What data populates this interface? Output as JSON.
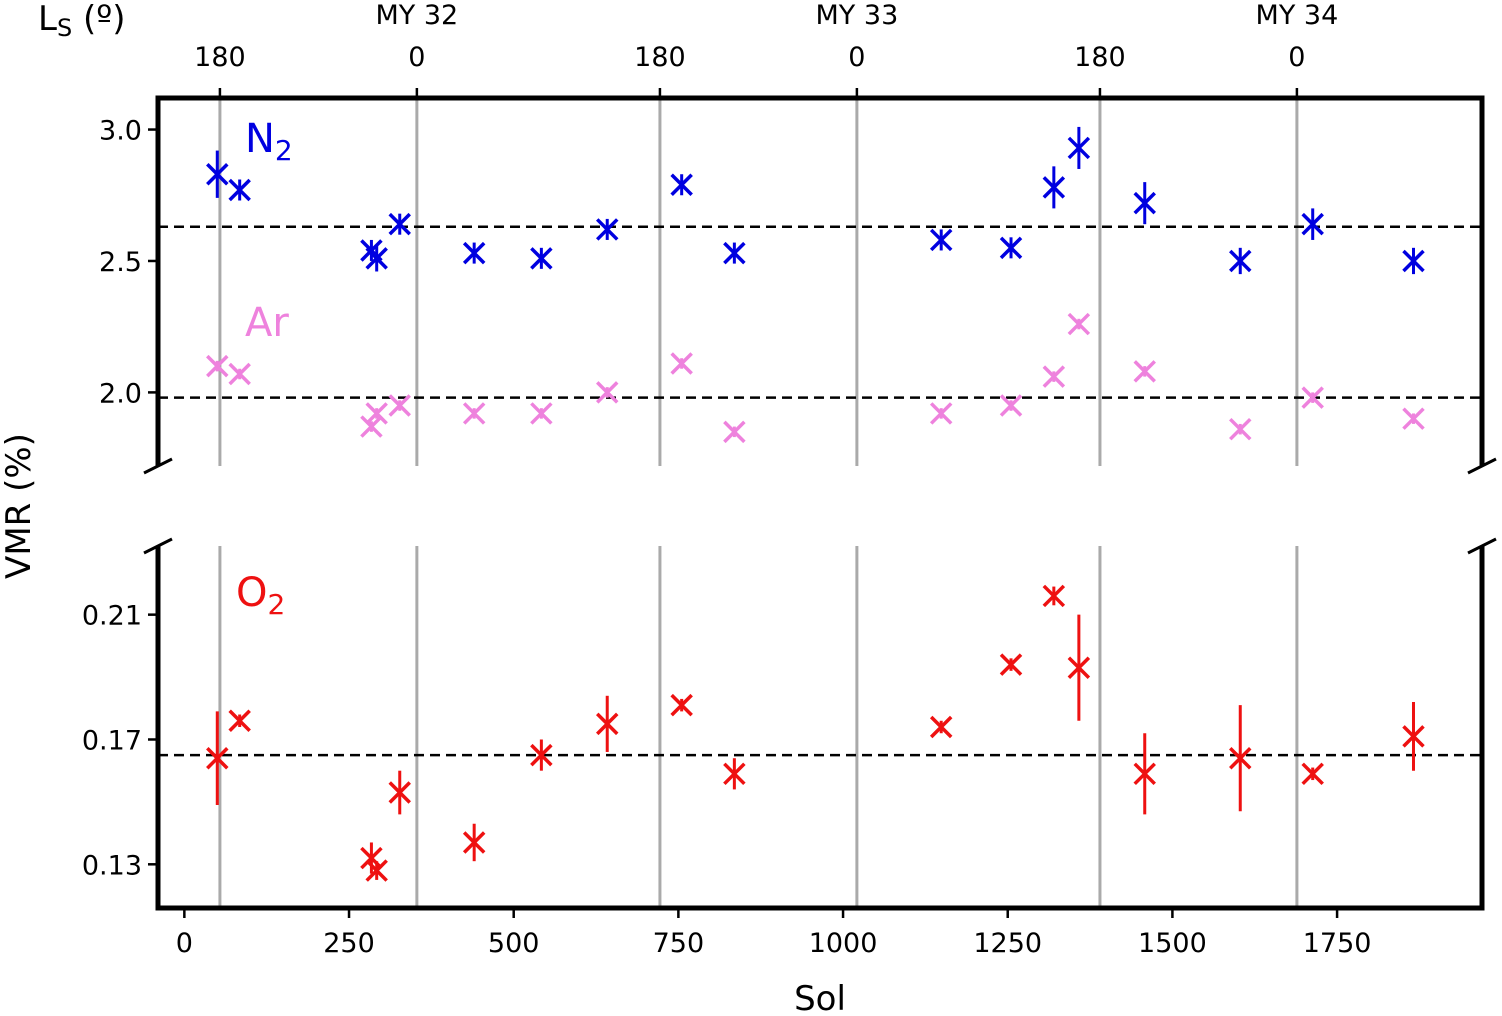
{
  "chart_data": {
    "type": "scatter",
    "xlabel": "Sol",
    "ylabel": "VMR (%)",
    "xlim": [
      -40,
      1970
    ],
    "x_ticks": [
      0,
      250,
      500,
      750,
      1000,
      1250,
      1500,
      1750
    ],
    "x_tick_labels": [
      "0",
      "250",
      "500",
      "750",
      "1000",
      "1250",
      "1500",
      "1750"
    ],
    "top_axis": {
      "label_main": "L",
      "label_sub": "S",
      "label_unit": " (º)",
      "ls_ticks": [
        {
          "sol": 54,
          "label": "180"
        },
        {
          "sol": 353,
          "label": "0"
        },
        {
          "sol": 722,
          "label": "180"
        },
        {
          "sol": 1021,
          "label": "0"
        },
        {
          "sol": 1390,
          "label": "180"
        },
        {
          "sol": 1689,
          "label": "0"
        }
      ],
      "martian_years": [
        {
          "sol": 353,
          "label": "MY 32"
        },
        {
          "sol": 1021,
          "label": "MY 33"
        },
        {
          "sol": 1689,
          "label": "MY 34"
        }
      ]
    },
    "vertical_lines_sol": [
      54,
      353,
      722,
      1021,
      1390,
      1689
    ],
    "panels": [
      {
        "name": "upper",
        "ylim": [
          1.72,
          3.12
        ],
        "y_ticks": [
          2.0,
          2.5,
          3.0
        ],
        "y_tick_labels": [
          "2.0",
          "2.5",
          "3.0"
        ],
        "series": [
          {
            "name": "N2",
            "label_main": "N",
            "label_sub": "2",
            "color": "#0000e0",
            "mean": 2.63,
            "points": [
              {
                "x": 50,
                "y": 2.83,
                "err": 0.09
              },
              {
                "x": 84,
                "y": 2.77,
                "err": 0.04
              },
              {
                "x": 284,
                "y": 2.54,
                "err": 0.04
              },
              {
                "x": 292,
                "y": 2.51,
                "err": 0.05
              },
              {
                "x": 327,
                "y": 2.64,
                "err": 0.04
              },
              {
                "x": 440,
                "y": 2.53,
                "err": 0.04
              },
              {
                "x": 542,
                "y": 2.51,
                "err": 0.04
              },
              {
                "x": 642,
                "y": 2.62,
                "err": 0.04
              },
              {
                "x": 755,
                "y": 2.79,
                "err": 0.04
              },
              {
                "x": 835,
                "y": 2.53,
                "err": 0.04
              },
              {
                "x": 1149,
                "y": 2.58,
                "err": 0.04
              },
              {
                "x": 1255,
                "y": 2.55,
                "err": 0.04
              },
              {
                "x": 1320,
                "y": 2.78,
                "err": 0.08
              },
              {
                "x": 1358,
                "y": 2.93,
                "err": 0.08
              },
              {
                "x": 1458,
                "y": 2.72,
                "err": 0.08
              },
              {
                "x": 1603,
                "y": 2.5,
                "err": 0.05
              },
              {
                "x": 1713,
                "y": 2.64,
                "err": 0.06
              },
              {
                "x": 1866,
                "y": 2.5,
                "err": 0.05
              }
            ]
          },
          {
            "name": "Ar",
            "label_main": "Ar",
            "label_sub": "",
            "color": "#ee82dd",
            "mean": 1.98,
            "points": [
              {
                "x": 50,
                "y": 2.1,
                "err": 0.02
              },
              {
                "x": 84,
                "y": 2.07,
                "err": 0.02
              },
              {
                "x": 284,
                "y": 1.87,
                "err": 0.02
              },
              {
                "x": 292,
                "y": 1.92,
                "err": 0.02
              },
              {
                "x": 327,
                "y": 1.95,
                "err": 0.02
              },
              {
                "x": 440,
                "y": 1.92,
                "err": 0.02
              },
              {
                "x": 542,
                "y": 1.92,
                "err": 0.02
              },
              {
                "x": 642,
                "y": 2.0,
                "err": 0.02
              },
              {
                "x": 755,
                "y": 2.11,
                "err": 0.02
              },
              {
                "x": 835,
                "y": 1.85,
                "err": 0.02
              },
              {
                "x": 1149,
                "y": 1.92,
                "err": 0.02
              },
              {
                "x": 1255,
                "y": 1.95,
                "err": 0.02
              },
              {
                "x": 1320,
                "y": 2.06,
                "err": 0.02
              },
              {
                "x": 1358,
                "y": 2.26,
                "err": 0.02
              },
              {
                "x": 1458,
                "y": 2.08,
                "err": 0.02
              },
              {
                "x": 1603,
                "y": 1.86,
                "err": 0.02
              },
              {
                "x": 1713,
                "y": 1.98,
                "err": 0.02
              },
              {
                "x": 1866,
                "y": 1.9,
                "err": 0.02
              }
            ]
          }
        ]
      },
      {
        "name": "lower",
        "ylim": [
          0.116,
          0.232
        ],
        "y_ticks": [
          0.13,
          0.17,
          0.21
        ],
        "y_tick_labels": [
          "0.13",
          "0.17",
          "0.21"
        ],
        "series": [
          {
            "name": "O2",
            "label_main": "O",
            "label_sub": "2",
            "color": "#ee1111",
            "mean": 0.165,
            "points": [
              {
                "x": 50,
                "y": 0.164,
                "err": 0.015
              },
              {
                "x": 84,
                "y": 0.176,
                "err": 0.002
              },
              {
                "x": 284,
                "y": 0.132,
                "err": 0.005
              },
              {
                "x": 292,
                "y": 0.128,
                "err": 0.003
              },
              {
                "x": 327,
                "y": 0.153,
                "err": 0.007
              },
              {
                "x": 440,
                "y": 0.137,
                "err": 0.006
              },
              {
                "x": 542,
                "y": 0.165,
                "err": 0.005
              },
              {
                "x": 642,
                "y": 0.175,
                "err": 0.009
              },
              {
                "x": 755,
                "y": 0.181,
                "err": 0.002
              },
              {
                "x": 835,
                "y": 0.159,
                "err": 0.005
              },
              {
                "x": 1149,
                "y": 0.174,
                "err": 0.002
              },
              {
                "x": 1255,
                "y": 0.194,
                "err": 0.002
              },
              {
                "x": 1320,
                "y": 0.216,
                "err": 0.003
              },
              {
                "x": 1358,
                "y": 0.193,
                "err": 0.017
              },
              {
                "x": 1458,
                "y": 0.159,
                "err": 0.013
              },
              {
                "x": 1603,
                "y": 0.164,
                "err": 0.017
              },
              {
                "x": 1713,
                "y": 0.159,
                "err": 0.002
              },
              {
                "x": 1866,
                "y": 0.171,
                "err": 0.011
              }
            ]
          }
        ]
      }
    ]
  }
}
